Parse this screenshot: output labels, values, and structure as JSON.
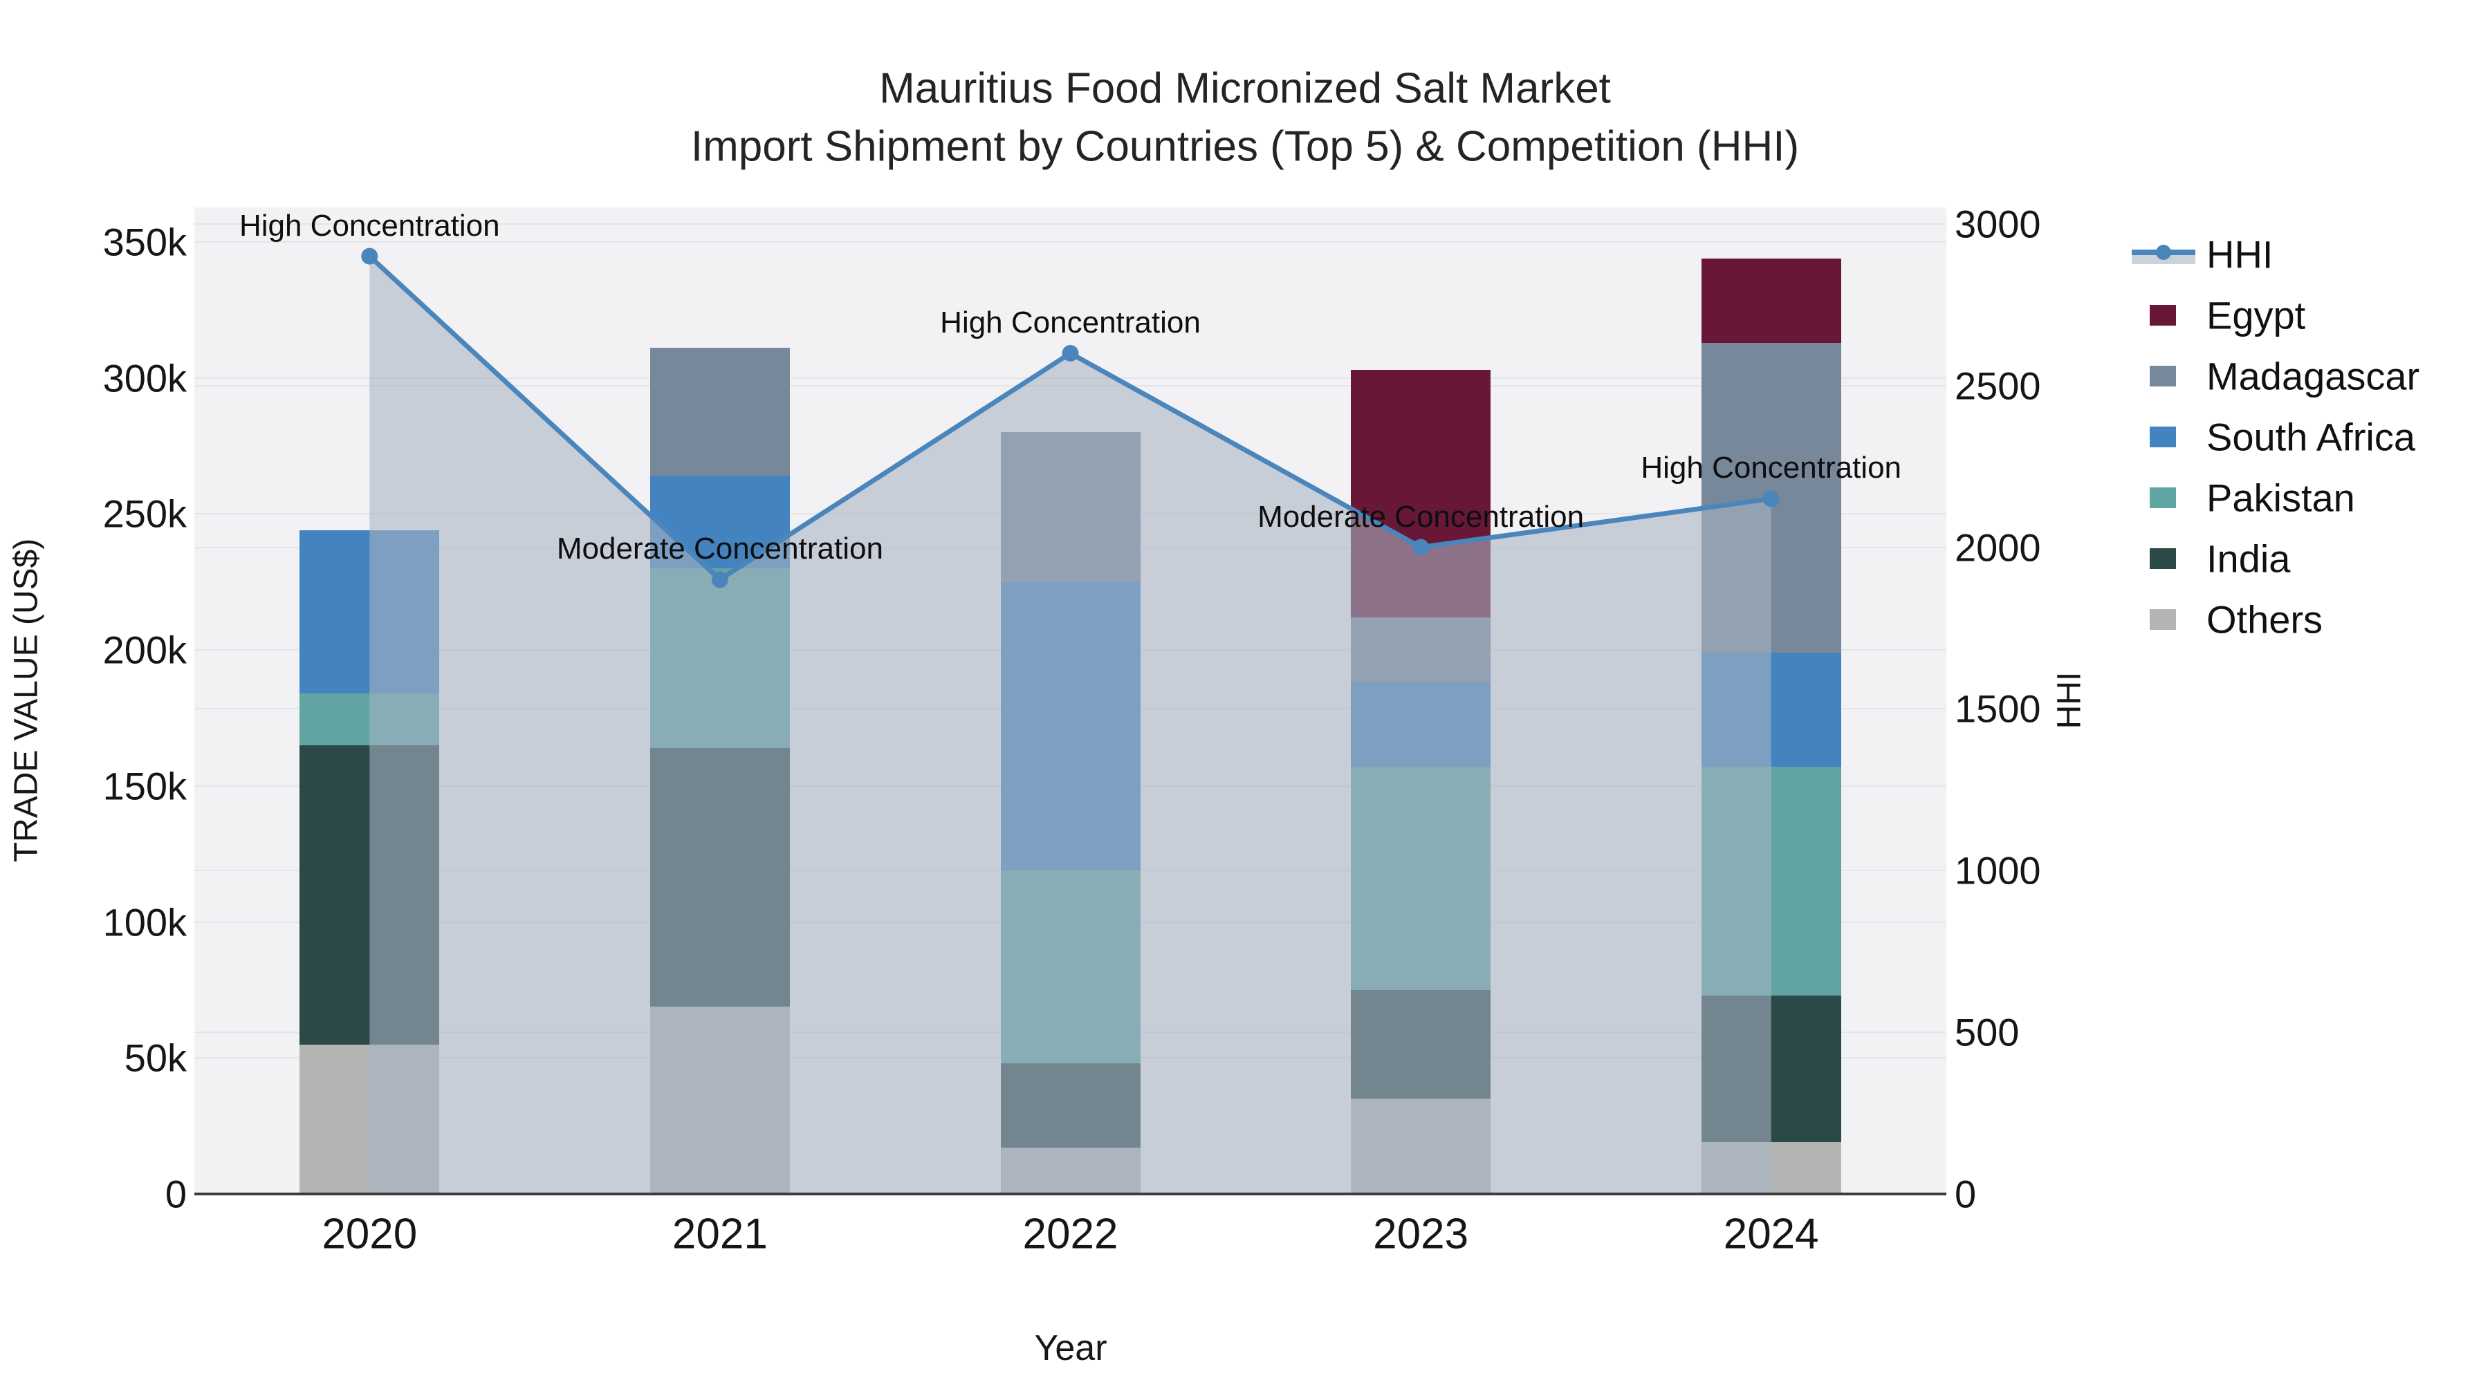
{
  "title": {
    "line1": "Mauritius Food Micronized Salt Market",
    "line2": "Import Shipment by Countries (Top 5) & Competition (HHI)"
  },
  "axes": {
    "xlabel": "Year",
    "ylabel_left": "TRADE VALUE (US$)",
    "ylabel_right": "HHI"
  },
  "chart_data": {
    "type": "combo: stacked bar (trade value) + line on secondary axis (HHI) with area fill",
    "title": "Mauritius Food Micronized Salt Market — Import Shipment by Countries (Top 5) & Competition (HHI)",
    "categories": [
      "2020",
      "2021",
      "2022",
      "2023",
      "2024"
    ],
    "xlabel": "Year",
    "ylabel_left": "TRADE VALUE (US$)",
    "ylabel_right": "HHI",
    "ylim_left": [
      0,
      362700
    ],
    "ylim_right": [
      0,
      3051
    ],
    "grid": "on (both axes, horizontal)",
    "legend_position": "right",
    "series": [
      {
        "name": "Others",
        "color": "#b3b5b2",
        "values": [
          55000,
          69000,
          17000,
          35000,
          19000
        ]
      },
      {
        "name": "India",
        "color": "#2b4946",
        "values": [
          110000,
          95000,
          31000,
          40000,
          54000
        ]
      },
      {
        "name": "Pakistan",
        "color": "#61a5a2",
        "values": [
          19000,
          66000,
          71000,
          82000,
          84000
        ]
      },
      {
        "name": "South Africa",
        "color": "#4383bf",
        "values": [
          60000,
          34000,
          106000,
          31000,
          42000
        ]
      },
      {
        "name": "Madagascar",
        "color": "#78889b",
        "values": [
          0,
          47000,
          55000,
          24000,
          114000
        ]
      },
      {
        "name": "Egypt",
        "color": "#681737",
        "values": [
          0,
          0,
          0,
          91000,
          31000
        ]
      }
    ],
    "hhi_line": {
      "name": "HHI",
      "color": "#4a86bc",
      "fill_color": "rgba(167,180,196,0.58)",
      "values": [
        2900,
        1900,
        2600,
        2000,
        2150
      ],
      "point_annotations": [
        "High Concentration",
        "Moderate Concentration",
        "High Concentration",
        "Moderate Concentration",
        "High Concentration"
      ]
    },
    "yticks_left": {
      "labels": [
        "0",
        "50k",
        "100k",
        "150k",
        "200k",
        "250k",
        "300k",
        "350k"
      ],
      "values": [
        0,
        50000,
        100000,
        150000,
        200000,
        250000,
        300000,
        350000
      ]
    },
    "yticks_right": {
      "labels": [
        "0",
        "500",
        "1000",
        "1500",
        "2000",
        "2500",
        "3000"
      ],
      "values": [
        0,
        500,
        1000,
        1500,
        2000,
        2500,
        3000
      ]
    },
    "legend": [
      {
        "label": "HHI",
        "type": "line",
        "color": "#4a86bc"
      },
      {
        "label": "Egypt",
        "type": "swatch",
        "color": "#681737"
      },
      {
        "label": "Madagascar",
        "type": "swatch",
        "color": "#78889b"
      },
      {
        "label": "South Africa",
        "type": "swatch",
        "color": "#4383bf"
      },
      {
        "label": "Pakistan",
        "type": "swatch",
        "color": "#61a5a2"
      },
      {
        "label": "India",
        "type": "swatch",
        "color": "#2b4946"
      },
      {
        "label": "Others",
        "type": "swatch",
        "color": "#b3b5b2"
      }
    ]
  }
}
